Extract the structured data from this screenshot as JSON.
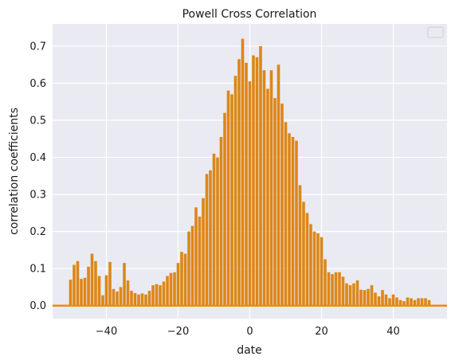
{
  "chart_data": {
    "type": "bar",
    "title": "Powell Cross Correlation",
    "xlabel": "date",
    "ylabel": "correlation coefficients",
    "xlim": [
      -55,
      55
    ],
    "ylim": [
      -0.035,
      0.76
    ],
    "xticks": [
      -40,
      -20,
      0,
      20,
      40
    ],
    "xtick_labels": [
      "−40",
      "−20",
      "0",
      "20",
      "40"
    ],
    "yticks": [
      0.0,
      0.1,
      0.2,
      0.3,
      0.4,
      0.5,
      0.6,
      0.7
    ],
    "ytick_labels": [
      "0.0",
      "0.1",
      "0.2",
      "0.3",
      "0.4",
      "0.5",
      "0.6",
      "0.7"
    ],
    "grid": true,
    "legend": "top-right (empty)",
    "bar_color": "#dd8617",
    "baseline_color": "#ee8b14",
    "background_color": "#eaeaf2",
    "x": [
      -50,
      -49,
      -48,
      -47,
      -46,
      -45,
      -44,
      -43,
      -42,
      -41,
      -40,
      -39,
      -38,
      -37,
      -36,
      -35,
      -34,
      -33,
      -32,
      -31,
      -30,
      -29,
      -28,
      -27,
      -26,
      -25,
      -24,
      -23,
      -22,
      -21,
      -20,
      -19,
      -18,
      -17,
      -16,
      -15,
      -14,
      -13,
      -12,
      -11,
      -10,
      -9,
      -8,
      -7,
      -6,
      -5,
      -4,
      -3,
      -2,
      -1,
      0,
      1,
      2,
      3,
      4,
      5,
      6,
      7,
      8,
      9,
      10,
      11,
      12,
      13,
      14,
      15,
      16,
      17,
      18,
      19,
      20,
      21,
      22,
      23,
      24,
      25,
      26,
      27,
      28,
      29,
      30,
      31,
      32,
      33,
      34,
      35,
      36,
      37,
      38,
      39,
      40,
      41,
      42,
      43,
      44,
      45,
      46,
      47,
      48,
      49,
      50
    ],
    "values": [
      0.07,
      0.11,
      0.12,
      0.072,
      0.075,
      0.105,
      0.14,
      0.12,
      0.08,
      0.028,
      0.082,
      0.118,
      0.045,
      0.038,
      0.05,
      0.115,
      0.068,
      0.04,
      0.034,
      0.03,
      0.033,
      0.03,
      0.04,
      0.055,
      0.058,
      0.055,
      0.065,
      0.08,
      0.088,
      0.09,
      0.115,
      0.145,
      0.14,
      0.2,
      0.215,
      0.265,
      0.24,
      0.29,
      0.355,
      0.365,
      0.41,
      0.4,
      0.455,
      0.52,
      0.58,
      0.57,
      0.62,
      0.665,
      0.72,
      0.655,
      0.605,
      0.675,
      0.67,
      0.7,
      0.635,
      0.585,
      0.635,
      0.56,
      0.65,
      0.545,
      0.495,
      0.465,
      0.455,
      0.445,
      0.325,
      0.28,
      0.25,
      0.22,
      0.2,
      0.195,
      0.185,
      0.125,
      0.09,
      0.085,
      0.09,
      0.09,
      0.078,
      0.06,
      0.055,
      0.06,
      0.068,
      0.043,
      0.042,
      0.045,
      0.055,
      0.035,
      0.025,
      0.042,
      0.03,
      0.02,
      0.03,
      0.022,
      0.015,
      0.012,
      0.022,
      0.02,
      0.015,
      0.02,
      0.02,
      0.02,
      0.015
    ]
  }
}
